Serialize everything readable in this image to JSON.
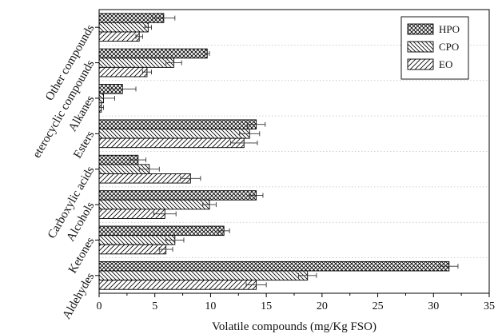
{
  "chart_data": {
    "type": "bar",
    "orientation": "horizontal",
    "title": "",
    "xlabel": "Volatile compounds (mg/Kg FSO)",
    "ylabel": "",
    "xlim": [
      0,
      35
    ],
    "xticks": [
      0,
      5,
      10,
      15,
      20,
      25,
      30,
      35
    ],
    "grid": "dotted horizontal separators",
    "legend_position": "top-right",
    "categories": [
      "Aldehydes",
      "Ketones",
      "Alcohols",
      "Carboxylic acids",
      "Esters",
      "Alkanes",
      "eterocyclic compounds",
      "Other compounds"
    ],
    "series": [
      {
        "name": "HPO",
        "pattern": "crosshatch",
        "values": [
          31.4,
          11.2,
          14.1,
          3.5,
          14.1,
          2.1,
          9.7,
          5.8
        ],
        "errors": [
          0.8,
          0.5,
          0.6,
          0.7,
          0.8,
          1.2,
          0.2,
          1.0
        ]
      },
      {
        "name": "CPO",
        "pattern": "back-diagonal",
        "values": [
          18.7,
          6.8,
          9.9,
          4.5,
          13.5,
          0.4,
          6.7,
          4.4
        ],
        "errors": [
          0.8,
          0.8,
          0.6,
          0.9,
          0.9,
          1.0,
          0.7,
          0.3
        ]
      },
      {
        "name": "EO",
        "pattern": "forward-diagonal",
        "values": [
          14.1,
          6.0,
          5.9,
          8.2,
          13.0,
          0.2,
          4.3,
          3.6
        ],
        "errors": [
          0.9,
          0.6,
          1.0,
          0.9,
          1.2,
          0.2,
          0.4,
          0.3
        ]
      }
    ]
  }
}
